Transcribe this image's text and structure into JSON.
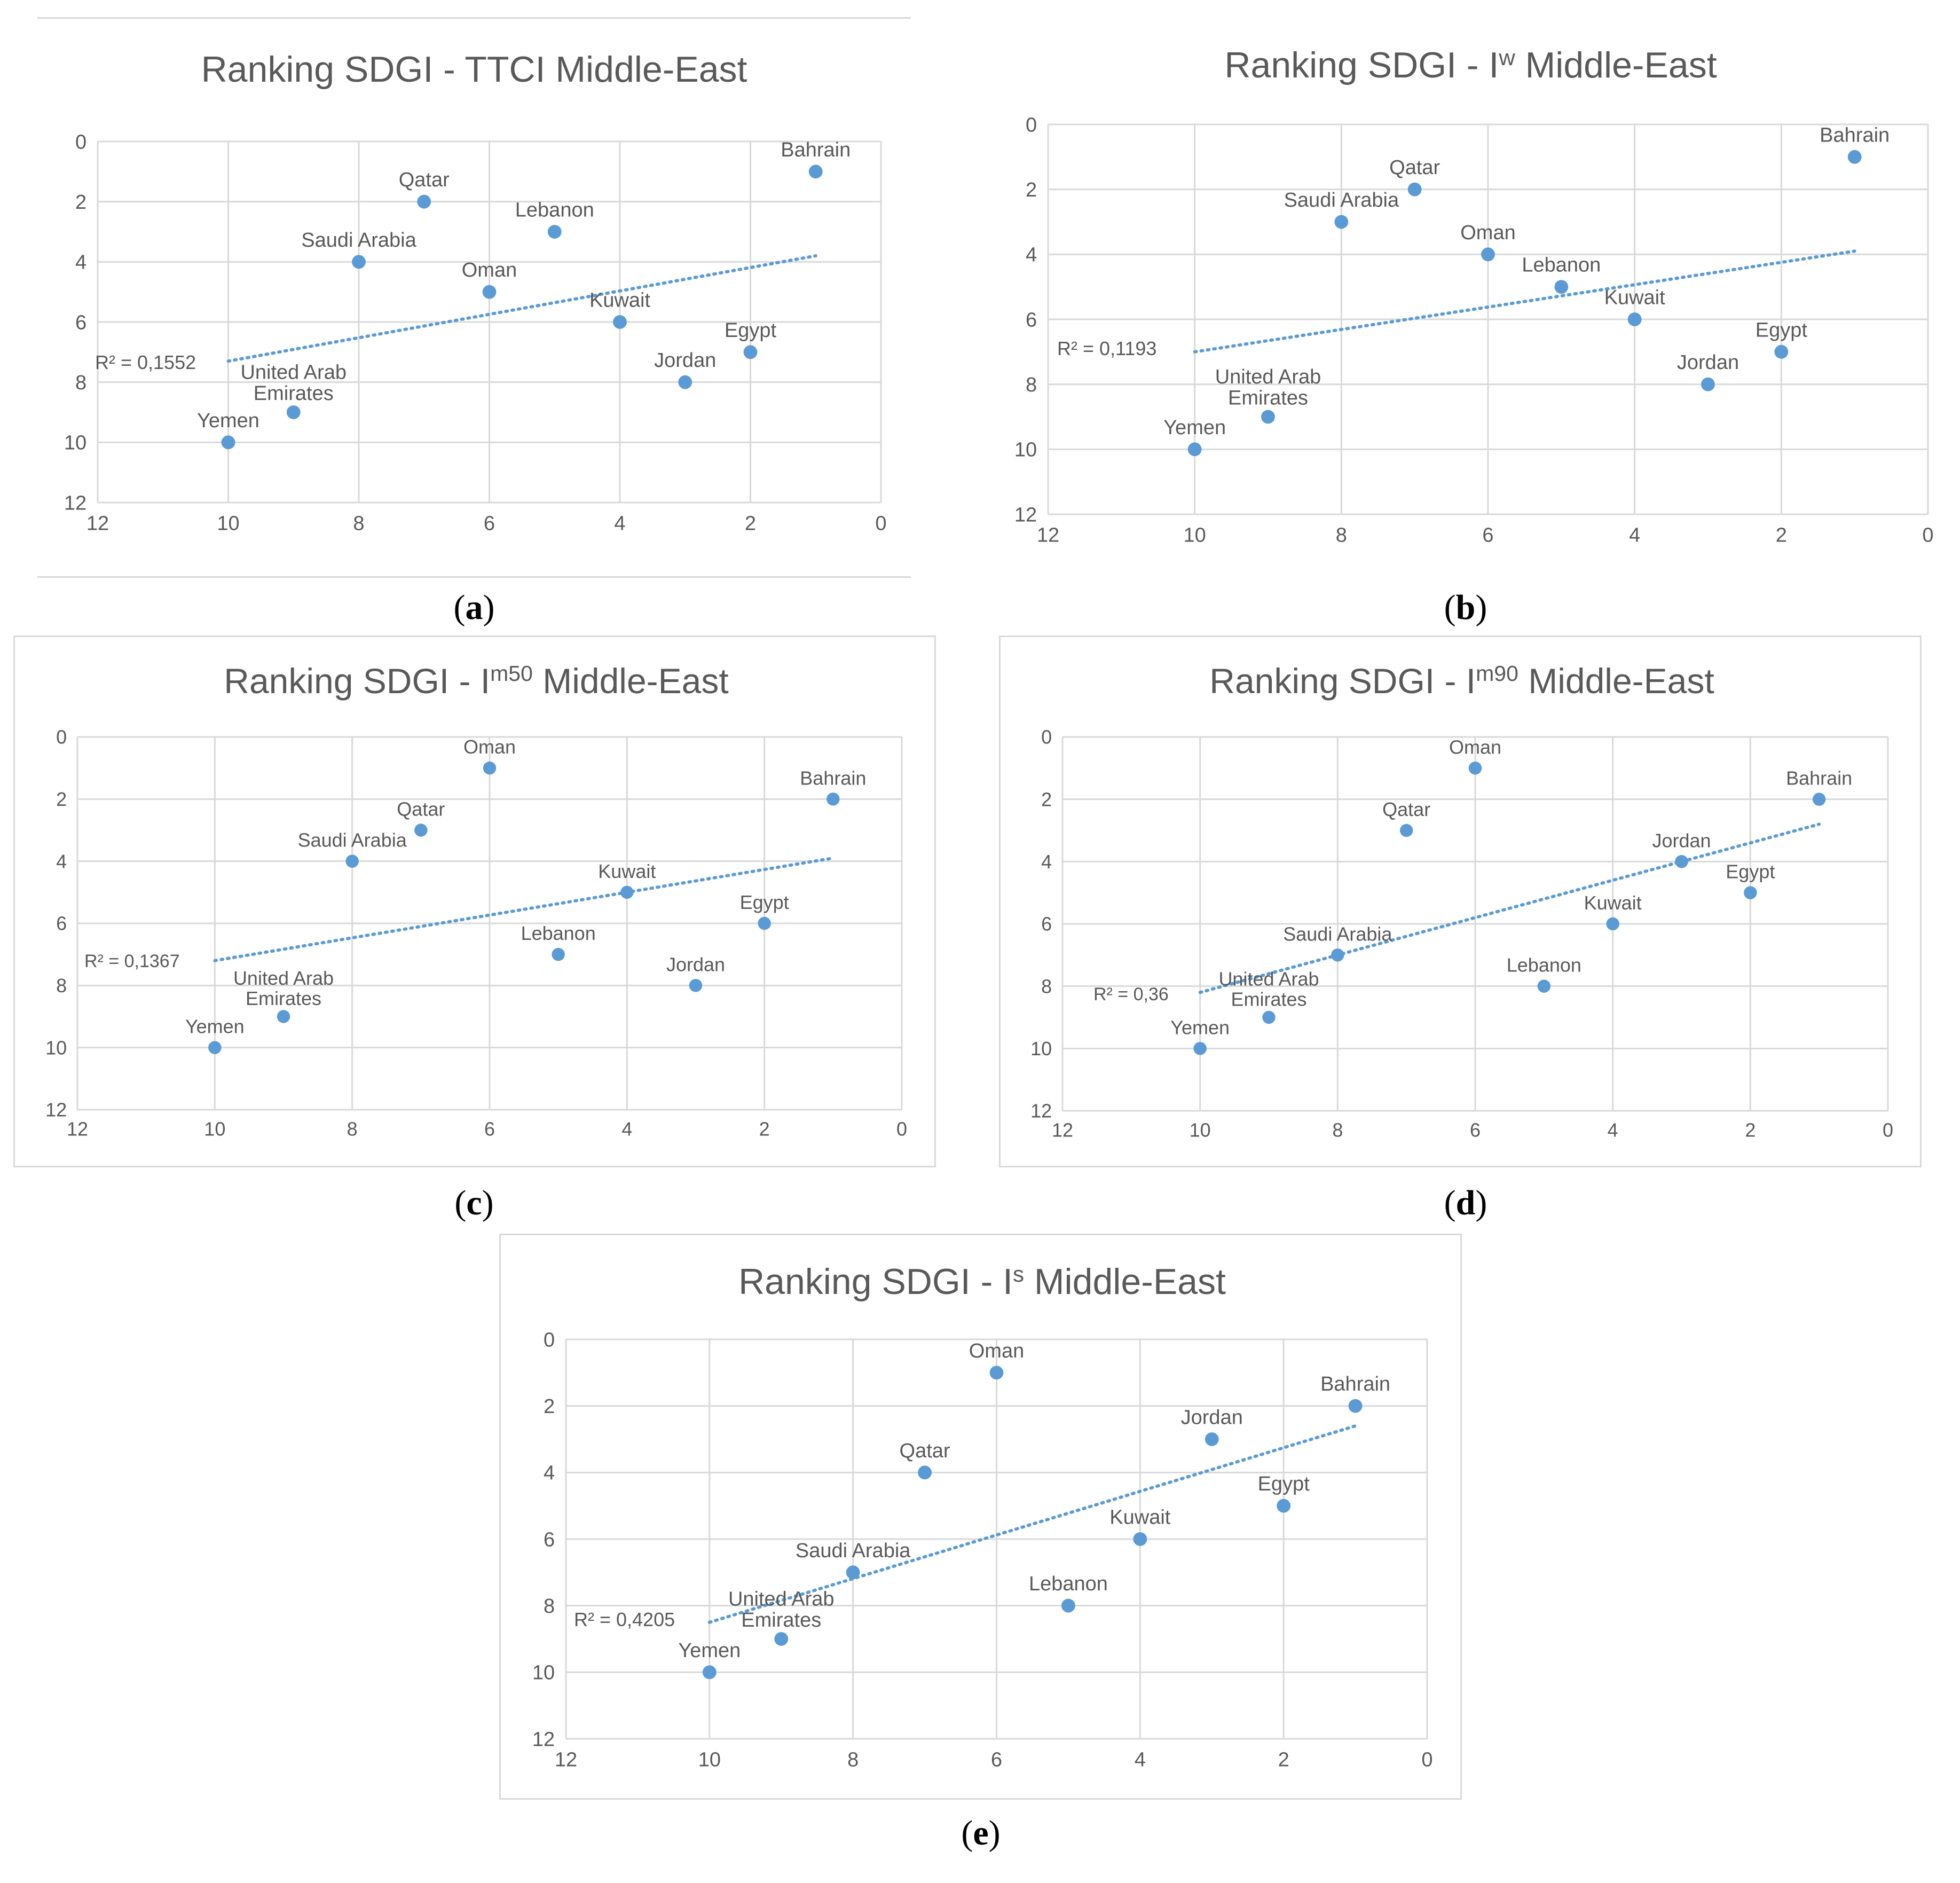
{
  "captions": [
    "a",
    "b",
    "c",
    "d",
    "e"
  ],
  "chart_data": [
    {
      "type": "scatter",
      "title": {
        "prefix": "Ranking SDGI - TTCI Middle-East",
        "sup": "",
        "suffix": ""
      },
      "xlim": [
        12,
        0
      ],
      "ylim": [
        0,
        12
      ],
      "xticks": [
        12,
        10,
        8,
        6,
        4,
        2,
        0
      ],
      "yticks": [
        0,
        2,
        4,
        6,
        8,
        10,
        12
      ],
      "points": [
        {
          "name": "Bahrain",
          "x": 1,
          "y": 1
        },
        {
          "name": "Qatar",
          "x": 7,
          "y": 2
        },
        {
          "name": "Lebanon",
          "x": 5,
          "y": 3
        },
        {
          "name": "Saudi Arabia",
          "x": 8,
          "y": 4
        },
        {
          "name": "Oman",
          "x": 6,
          "y": 5
        },
        {
          "name": "Kuwait",
          "x": 4,
          "y": 6
        },
        {
          "name": "Egypt",
          "x": 2,
          "y": 7
        },
        {
          "name": "Jordan",
          "x": 3,
          "y": 8
        },
        {
          "name": "United Arab Emirates",
          "x": 9,
          "y": 9
        },
        {
          "name": "Yemen",
          "x": 10,
          "y": 10
        }
      ],
      "trendline": {
        "x": [
          10,
          1
        ],
        "y": [
          7.3,
          3.8
        ],
        "r2": "R² = 0,1552"
      }
    },
    {
      "type": "scatter",
      "title": {
        "prefix": "Ranking SDGI - I",
        "sup": "w",
        "suffix": " Middle-East"
      },
      "xlim": [
        12,
        0
      ],
      "ylim": [
        0,
        12
      ],
      "xticks": [
        12,
        10,
        8,
        6,
        4,
        2,
        0
      ],
      "yticks": [
        0,
        2,
        4,
        6,
        8,
        10,
        12
      ],
      "points": [
        {
          "name": "Bahrain",
          "x": 1,
          "y": 1
        },
        {
          "name": "Qatar",
          "x": 7,
          "y": 2
        },
        {
          "name": "Saudi Arabia",
          "x": 8,
          "y": 3
        },
        {
          "name": "Oman",
          "x": 6,
          "y": 4
        },
        {
          "name": "Lebanon",
          "x": 5,
          "y": 5
        },
        {
          "name": "Kuwait",
          "x": 4,
          "y": 6
        },
        {
          "name": "Egypt",
          "x": 2,
          "y": 7
        },
        {
          "name": "Jordan",
          "x": 3,
          "y": 8
        },
        {
          "name": "United Arab Emirates",
          "x": 9,
          "y": 9
        },
        {
          "name": "Yemen",
          "x": 10,
          "y": 10
        }
      ],
      "trendline": {
        "x": [
          10,
          1
        ],
        "y": [
          7.0,
          3.9
        ],
        "r2": "R² = 0,1193"
      }
    },
    {
      "type": "scatter",
      "title": {
        "prefix": "Ranking SDGI - I",
        "sup": "m50",
        "suffix": " Middle-East"
      },
      "xlim": [
        12,
        0
      ],
      "ylim": [
        0,
        12
      ],
      "xticks": [
        12,
        10,
        8,
        6,
        4,
        2,
        0
      ],
      "yticks": [
        0,
        2,
        4,
        6,
        8,
        10,
        12
      ],
      "points": [
        {
          "name": "Oman",
          "x": 6,
          "y": 1
        },
        {
          "name": "Bahrain",
          "x": 1,
          "y": 2
        },
        {
          "name": "Qatar",
          "x": 7,
          "y": 3
        },
        {
          "name": "Saudi Arabia",
          "x": 8,
          "y": 4
        },
        {
          "name": "Kuwait",
          "x": 4,
          "y": 5
        },
        {
          "name": "Egypt",
          "x": 2,
          "y": 6
        },
        {
          "name": "Lebanon",
          "x": 5,
          "y": 7
        },
        {
          "name": "Jordan",
          "x": 3,
          "y": 8
        },
        {
          "name": "United Arab Emirates",
          "x": 9,
          "y": 9
        },
        {
          "name": "Yemen",
          "x": 10,
          "y": 10
        }
      ],
      "trendline": {
        "x": [
          10,
          1
        ],
        "y": [
          7.2,
          3.9
        ],
        "r2": "R² = 0,1367"
      }
    },
    {
      "type": "scatter",
      "title": {
        "prefix": "Ranking SDGI - I",
        "sup": "m90",
        "suffix": " Middle-East"
      },
      "xlim": [
        12,
        0
      ],
      "ylim": [
        0,
        12
      ],
      "xticks": [
        12,
        10,
        8,
        6,
        4,
        2,
        0
      ],
      "yticks": [
        0,
        2,
        4,
        6,
        8,
        10,
        12
      ],
      "points": [
        {
          "name": "Oman",
          "x": 6,
          "y": 1
        },
        {
          "name": "Bahrain",
          "x": 1,
          "y": 2
        },
        {
          "name": "Qatar",
          "x": 7,
          "y": 3
        },
        {
          "name": "Jordan",
          "x": 3,
          "y": 4
        },
        {
          "name": "Egypt",
          "x": 2,
          "y": 5
        },
        {
          "name": "Kuwait",
          "x": 4,
          "y": 6
        },
        {
          "name": "Saudi Arabia",
          "x": 8,
          "y": 7
        },
        {
          "name": "Lebanon",
          "x": 5,
          "y": 8
        },
        {
          "name": "United Arab Emirates",
          "x": 9,
          "y": 9
        },
        {
          "name": "Yemen",
          "x": 10,
          "y": 10
        }
      ],
      "trendline": {
        "x": [
          10,
          1
        ],
        "y": [
          8.2,
          2.8
        ],
        "r2": "R² = 0,36"
      }
    },
    {
      "type": "scatter",
      "title": {
        "prefix": "Ranking SDGI - I",
        "sup": "s",
        "suffix": " Middle-East"
      },
      "xlim": [
        12,
        0
      ],
      "ylim": [
        0,
        12
      ],
      "xticks": [
        12,
        10,
        8,
        6,
        4,
        2,
        0
      ],
      "yticks": [
        0,
        2,
        4,
        6,
        8,
        10,
        12
      ],
      "points": [
        {
          "name": "Oman",
          "x": 6,
          "y": 1
        },
        {
          "name": "Bahrain",
          "x": 1,
          "y": 2
        },
        {
          "name": "Jordan",
          "x": 3,
          "y": 3
        },
        {
          "name": "Qatar",
          "x": 7,
          "y": 4
        },
        {
          "name": "Egypt",
          "x": 2,
          "y": 5
        },
        {
          "name": "Kuwait",
          "x": 4,
          "y": 6
        },
        {
          "name": "Saudi Arabia",
          "x": 8,
          "y": 7
        },
        {
          "name": "Lebanon",
          "x": 5,
          "y": 8
        },
        {
          "name": "United Arab Emirates",
          "x": 9,
          "y": 9
        },
        {
          "name": "Yemen",
          "x": 10,
          "y": 10
        }
      ],
      "trendline": {
        "x": [
          10,
          1
        ],
        "y": [
          8.5,
          2.6
        ],
        "r2": "R² = 0,4205"
      }
    }
  ]
}
